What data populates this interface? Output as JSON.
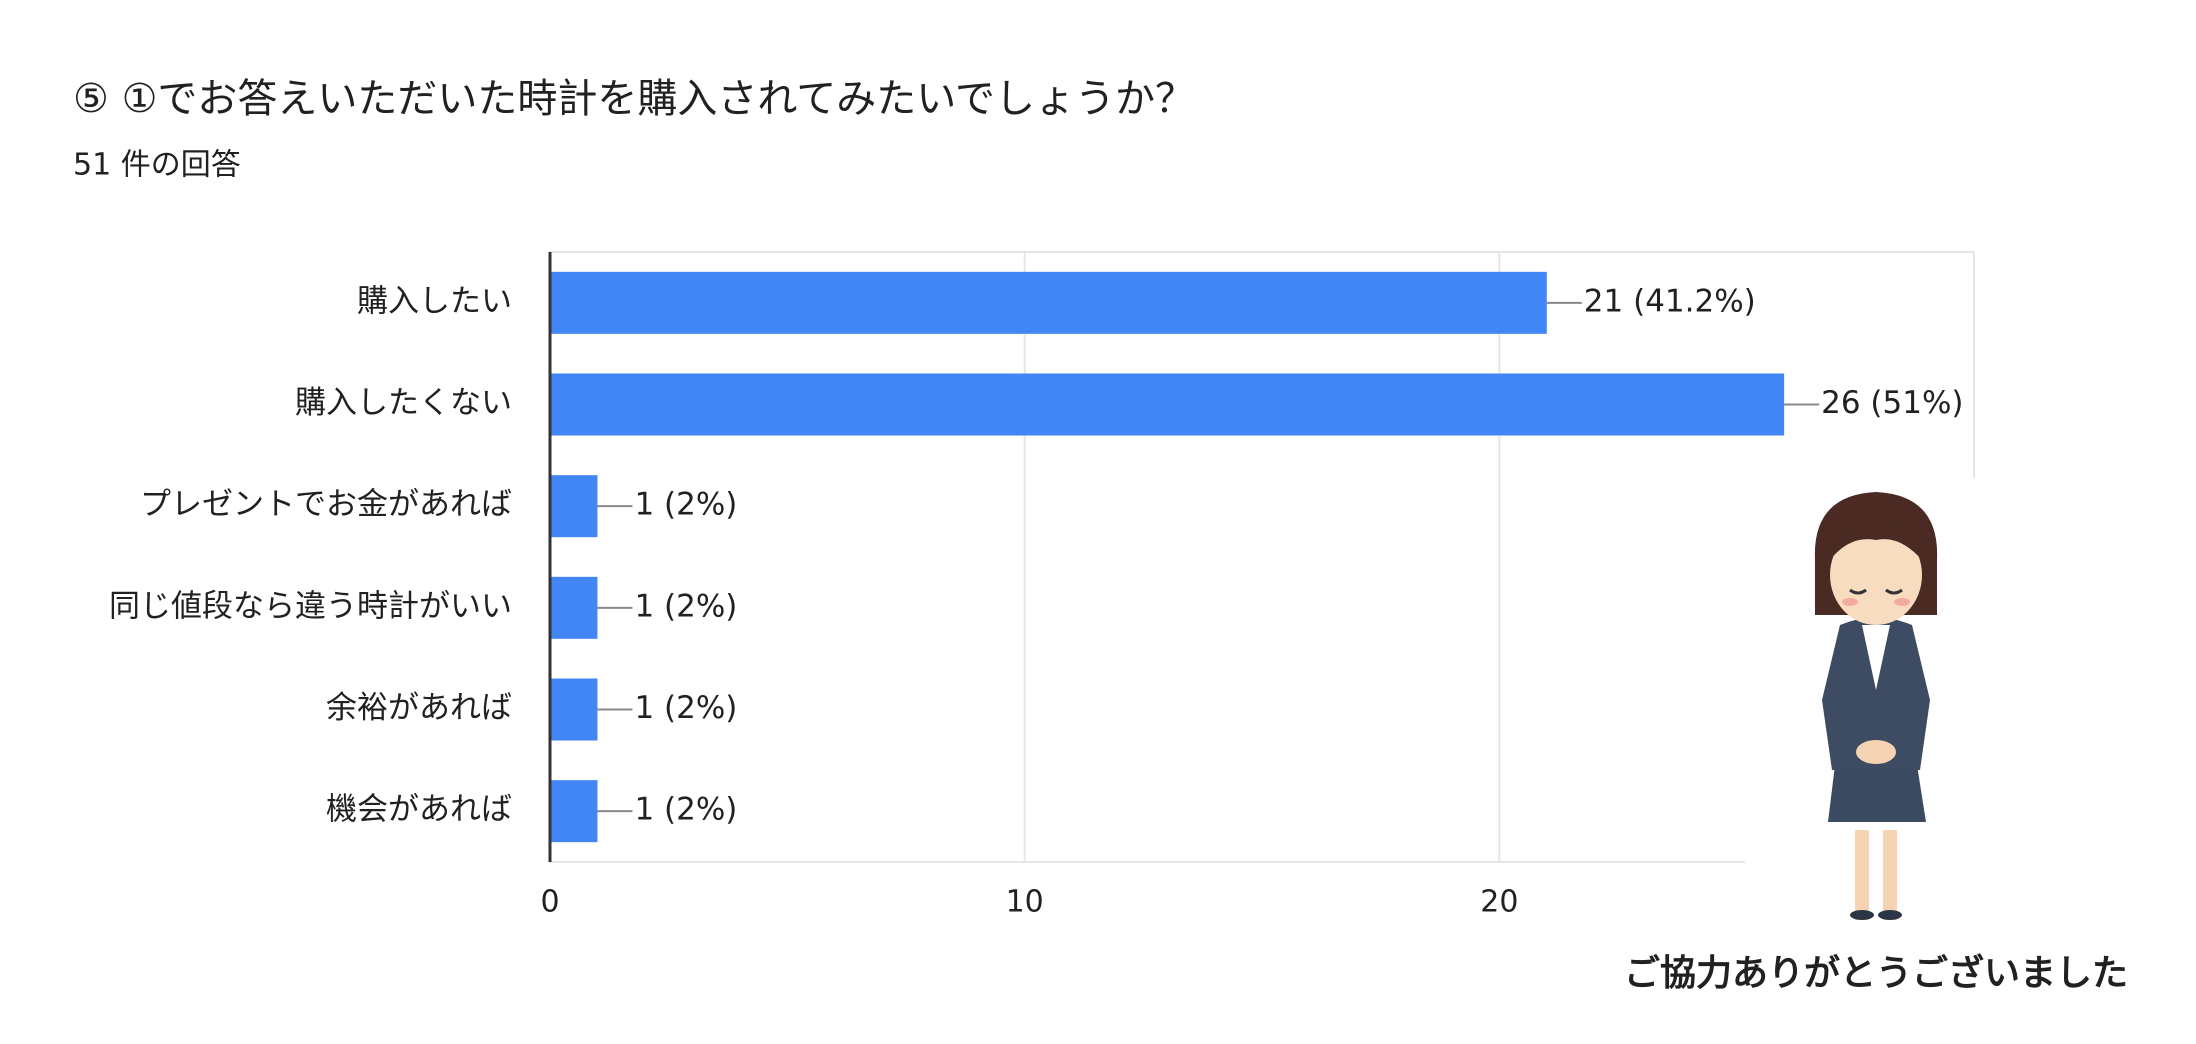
{
  "chart_data": {
    "type": "bar",
    "orientation": "horizontal",
    "title": "⑤ ①でお答えいただいた時計を購入されてみたいでしょうか？",
    "subtitle": "51 件の回答",
    "categories": [
      "購入したい",
      "購入したくない",
      "プレゼントでお金があれば",
      "同じ値段なら違う時計がいい",
      "余裕があれば",
      "機会があれば"
    ],
    "values": [
      21,
      26,
      1,
      1,
      1,
      1
    ],
    "value_labels": [
      "21 (41.2%)",
      "26 (51%)",
      "1 (2%)",
      "1 (2%)",
      "1 (2%)",
      "1 (2%)"
    ],
    "color": "#4285f4",
    "xlim": [
      0,
      30
    ],
    "xticks": [
      0,
      10,
      20
    ],
    "grid": true
  },
  "caption": "ご協力ありがとうございました"
}
